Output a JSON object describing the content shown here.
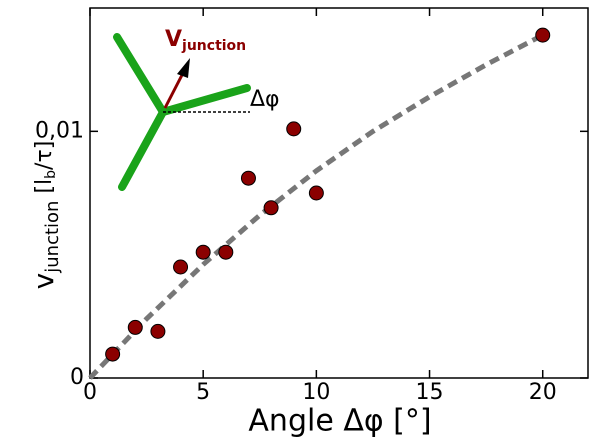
{
  "chart_data": {
    "type": "scatter",
    "xlabel": "Angle Δφ [°]",
    "ylabel": {
      "main": "v",
      "sub": "junction",
      "unit": " [l",
      "unit_sub": "b",
      "unit_end": "/τ]"
    },
    "xlim": [
      0,
      22
    ],
    "ylim": [
      0,
      0.015
    ],
    "xticks": [
      0,
      5,
      10,
      15,
      20
    ],
    "yticks": [
      0,
      {
        "value": 0.01,
        "label": "0,01"
      }
    ],
    "series": [
      {
        "mode": "markers",
        "color": "#8b0000",
        "x": [
          1,
          2,
          3,
          4,
          5,
          6,
          7,
          8,
          9,
          10,
          20
        ],
        "values": [
          0.00097,
          0.00205,
          0.00189,
          0.0045,
          0.0051,
          0.0051,
          0.0081,
          0.0069,
          0.0101,
          0.0075,
          0.0139
        ]
      },
      {
        "mode": "dashed-line",
        "color": "#777777",
        "x": [
          0,
          2.5,
          5,
          7.5,
          10,
          12.5,
          15,
          17.5,
          20
        ],
        "values": [
          0,
          0.0024,
          0.0046,
          0.0066,
          0.0084,
          0.01,
          0.0114,
          0.0127,
          0.0139
        ]
      }
    ],
    "inset": {
      "label": "V",
      "label_sub": "junction",
      "angle_label": "Δφ"
    }
  }
}
